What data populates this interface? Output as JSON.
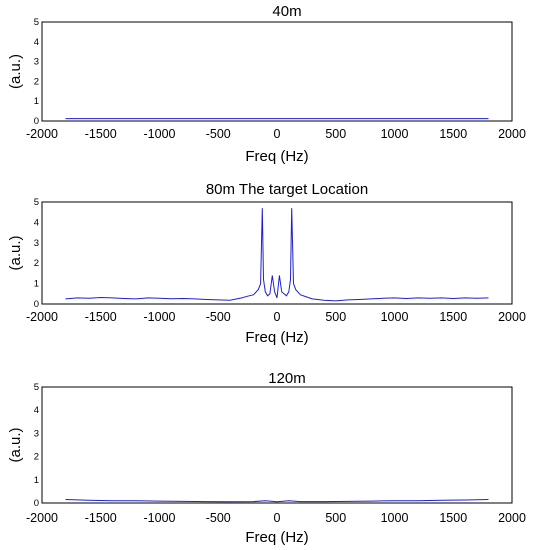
{
  "chart_data": [
    {
      "type": "line",
      "title": "40m",
      "xlabel": "Freq (Hz)",
      "ylabel": "(a.u.)",
      "xlim": [
        -2000,
        2000
      ],
      "ylim": [
        0,
        5
      ],
      "xticks": [
        -2000,
        -1500,
        -1000,
        -500,
        0,
        500,
        1000,
        1500,
        2000
      ],
      "yticks": [
        0,
        1,
        2,
        3,
        4,
        5
      ],
      "color": "#1f1fd6",
      "x": [
        -1800,
        -1400,
        -1000,
        -600,
        -200,
        0,
        200,
        600,
        1000,
        1400,
        1800
      ],
      "y": [
        0.12,
        0.12,
        0.12,
        0.12,
        0.12,
        0.12,
        0.12,
        0.12,
        0.12,
        0.12,
        0.12
      ]
    },
    {
      "type": "line",
      "title": "80m The target Location",
      "xlabel": "Freq (Hz)",
      "ylabel": "(a.u.)",
      "xlim": [
        -2000,
        2000
      ],
      "ylim": [
        0,
        5
      ],
      "xticks": [
        -2000,
        -1500,
        -1000,
        -500,
        0,
        500,
        1000,
        1500,
        2000
      ],
      "yticks": [
        0,
        1,
        2,
        3,
        4,
        5
      ],
      "color": "#1f1fd6",
      "x": [
        -1800,
        -1700,
        -1600,
        -1500,
        -1400,
        -1300,
        -1200,
        -1100,
        -1000,
        -900,
        -800,
        -700,
        -600,
        -500,
        -400,
        -300,
        -250,
        -200,
        -160,
        -140,
        -125,
        -115,
        -100,
        -80,
        -60,
        -40,
        -20,
        0,
        20,
        40,
        60,
        80,
        100,
        115,
        125,
        140,
        160,
        200,
        250,
        300,
        400,
        500,
        600,
        700,
        800,
        900,
        1000,
        1100,
        1200,
        1300,
        1400,
        1500,
        1600,
        1700,
        1800
      ],
      "y": [
        0.25,
        0.3,
        0.28,
        0.32,
        0.3,
        0.27,
        0.25,
        0.3,
        0.28,
        0.26,
        0.27,
        0.25,
        0.22,
        0.2,
        0.18,
        0.3,
        0.38,
        0.45,
        0.7,
        1.0,
        4.7,
        1.2,
        0.6,
        0.4,
        0.5,
        1.4,
        0.6,
        0.3,
        1.4,
        0.6,
        0.5,
        0.4,
        0.6,
        1.2,
        4.7,
        1.0,
        0.7,
        0.45,
        0.35,
        0.25,
        0.18,
        0.15,
        0.2,
        0.22,
        0.25,
        0.28,
        0.3,
        0.27,
        0.3,
        0.28,
        0.3,
        0.27,
        0.3,
        0.28,
        0.3
      ]
    },
    {
      "type": "line",
      "title": "120m",
      "xlabel": "Freq (Hz)",
      "ylabel": "(a.u.)",
      "xlim": [
        -2000,
        2000
      ],
      "ylim": [
        0,
        5
      ],
      "xticks": [
        -2000,
        -1500,
        -1000,
        -500,
        0,
        500,
        1000,
        1500,
        2000
      ],
      "yticks": [
        0,
        1,
        2,
        3,
        4,
        5
      ],
      "color": "#1f1fd6",
      "x": [
        -1800,
        -1600,
        -1400,
        -1200,
        -1000,
        -800,
        -600,
        -400,
        -200,
        -100,
        0,
        100,
        200,
        400,
        600,
        800,
        1000,
        1200,
        1400,
        1600,
        1800
      ],
      "y": [
        0.15,
        0.12,
        0.1,
        0.1,
        0.08,
        0.07,
        0.06,
        0.05,
        0.06,
        0.1,
        0.05,
        0.1,
        0.06,
        0.06,
        0.07,
        0.08,
        0.1,
        0.1,
        0.12,
        0.13,
        0.15
      ]
    }
  ]
}
